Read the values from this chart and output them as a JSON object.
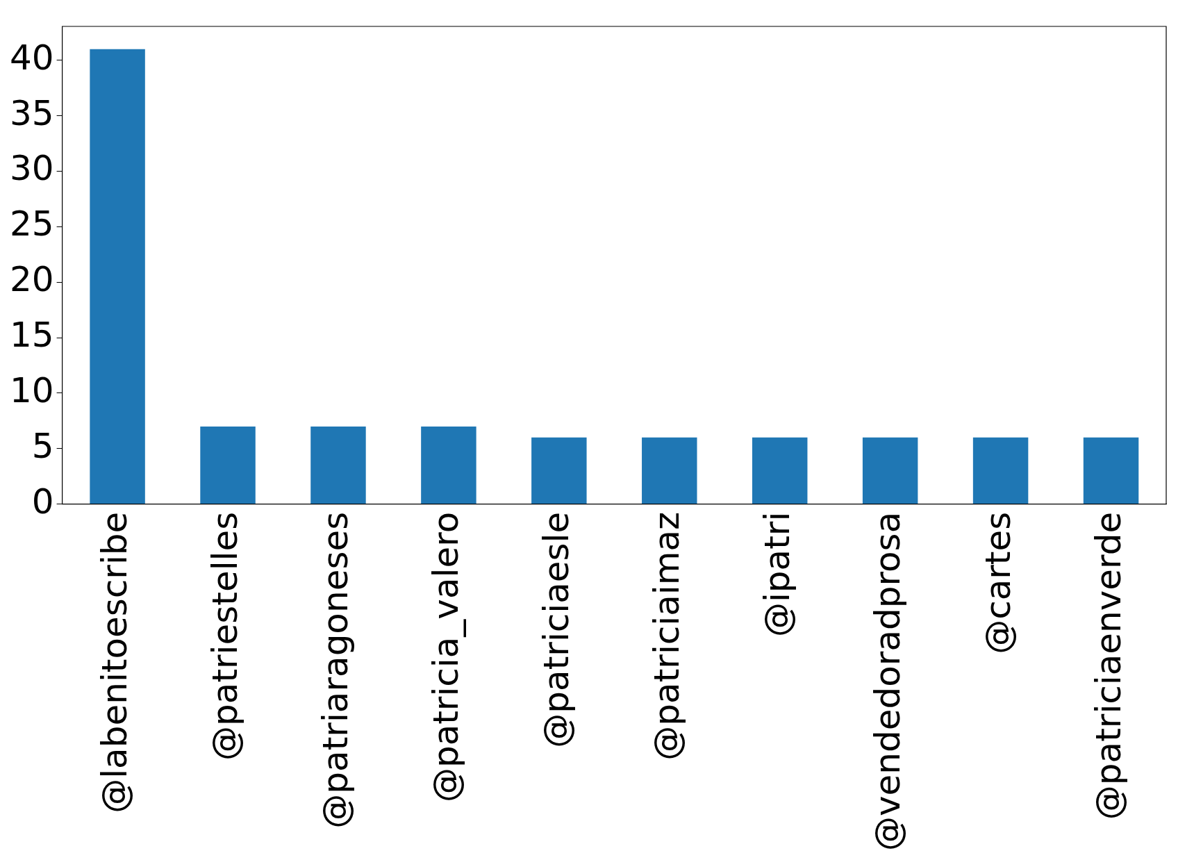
{
  "chart_data": {
    "type": "bar",
    "categories": [
      "@labenitoescribe",
      "@patriestelles",
      "@patriaragoneses",
      "@patricia_valero",
      "@patriciaesle",
      "@patriciaimaz",
      "@ipatri",
      "@vendedoradprosa",
      "@cartes",
      "@patriciaenverde"
    ],
    "values": [
      41,
      7,
      7,
      7,
      6,
      6,
      6,
      6,
      6,
      6
    ],
    "color": "#1f77b4",
    "ylim": [
      0,
      43.05
    ],
    "yticks": [
      0,
      5,
      10,
      15,
      20,
      25,
      30,
      35,
      40
    ],
    "grid": false,
    "legend": false
  }
}
